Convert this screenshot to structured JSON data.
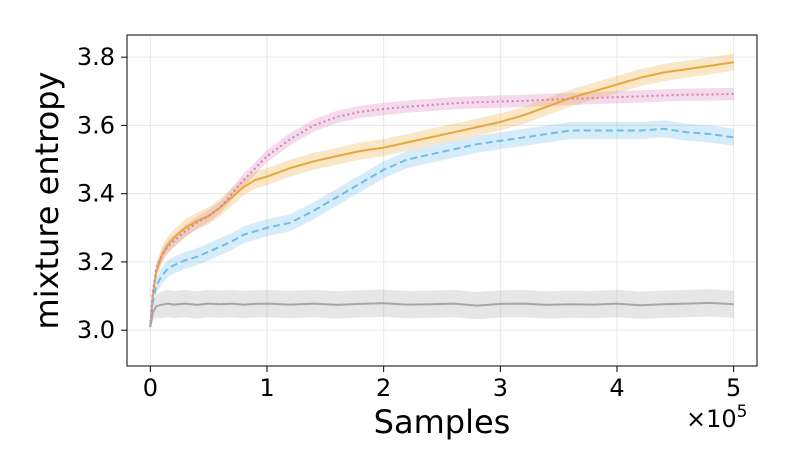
{
  "chart_data": {
    "type": "line",
    "title": "",
    "xlabel": "Samples",
    "ylabel": "mixture entropy",
    "x_multiplier": "×10",
    "x_multiplier_exp": "5",
    "xlim": [
      -0.2,
      5.2
    ],
    "ylim": [
      2.895,
      3.865
    ],
    "xticks": [
      0,
      1,
      2,
      3,
      4,
      5
    ],
    "xtick_labels": [
      "0",
      "1",
      "2",
      "3",
      "4",
      "5"
    ],
    "yticks": [
      3.0,
      3.2,
      3.4,
      3.6,
      3.8
    ],
    "ytick_labels": [
      "3.0",
      "3.2",
      "3.4",
      "3.6",
      "3.8"
    ],
    "grid": true,
    "x": [
      0,
      0.02,
      0.05,
      0.1,
      0.15,
      0.2,
      0.3,
      0.4,
      0.5,
      0.6,
      0.7,
      0.8,
      0.9,
      1.0,
      1.2,
      1.4,
      1.6,
      1.8,
      2.0,
      2.2,
      2.4,
      2.6,
      2.8,
      3.0,
      3.2,
      3.4,
      3.6,
      3.8,
      4.0,
      4.2,
      4.4,
      4.6,
      4.8,
      5.0
    ],
    "series": [
      {
        "color": "#e8a838",
        "dash": "solid",
        "values": [
          3.01,
          3.1,
          3.17,
          3.22,
          3.25,
          3.27,
          3.3,
          3.32,
          3.335,
          3.36,
          3.39,
          3.42,
          3.44,
          3.45,
          3.475,
          3.495,
          3.51,
          3.525,
          3.535,
          3.55,
          3.565,
          3.58,
          3.595,
          3.61,
          3.63,
          3.655,
          3.68,
          3.7,
          3.72,
          3.74,
          3.755,
          3.765,
          3.775,
          3.785
        ],
        "band": 0.025
      },
      {
        "color": "#6bbfe8",
        "dash": "dashed",
        "values": [
          3.01,
          3.08,
          3.13,
          3.16,
          3.18,
          3.19,
          3.205,
          3.215,
          3.23,
          3.245,
          3.26,
          3.28,
          3.29,
          3.3,
          3.315,
          3.35,
          3.39,
          3.43,
          3.47,
          3.5,
          3.515,
          3.53,
          3.545,
          3.555,
          3.565,
          3.575,
          3.585,
          3.585,
          3.585,
          3.585,
          3.59,
          3.58,
          3.575,
          3.565
        ],
        "band": 0.025
      },
      {
        "color": "#d67fb8",
        "dash": "dotted",
        "values": [
          3.01,
          3.11,
          3.18,
          3.22,
          3.245,
          3.26,
          3.29,
          3.315,
          3.335,
          3.36,
          3.4,
          3.44,
          3.475,
          3.51,
          3.56,
          3.6,
          3.625,
          3.64,
          3.648,
          3.655,
          3.66,
          3.665,
          3.668,
          3.67,
          3.672,
          3.675,
          3.678,
          3.68,
          3.683,
          3.685,
          3.688,
          3.69,
          3.691,
          3.692
        ],
        "band": 0.018
      },
      {
        "color": "#a6a6a6",
        "dash": "solid",
        "values": [
          3.01,
          3.05,
          3.07,
          3.075,
          3.078,
          3.075,
          3.078,
          3.074,
          3.078,
          3.076,
          3.078,
          3.075,
          3.077,
          3.078,
          3.075,
          3.078,
          3.074,
          3.077,
          3.079,
          3.075,
          3.076,
          3.078,
          3.072,
          3.077,
          3.078,
          3.074,
          3.076,
          3.075,
          3.078,
          3.073,
          3.076,
          3.078,
          3.08,
          3.076
        ],
        "band": 0.04
      }
    ]
  }
}
